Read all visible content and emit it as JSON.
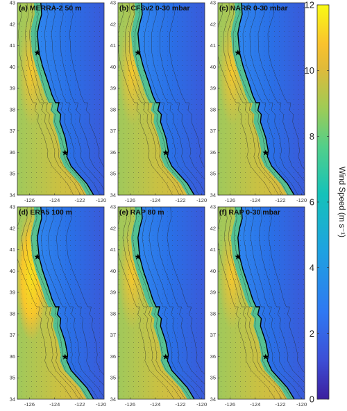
{
  "colorbar": {
    "label": "Wind Speed (m s⁻¹)",
    "ticks": [
      "0",
      "2",
      "4",
      "6",
      "8",
      "10",
      "12"
    ],
    "range": [
      0,
      12
    ],
    "colors": [
      "#3b1f9e",
      "#3d4fd6",
      "#2f78f2",
      "#1ea3e0",
      "#15c2b9",
      "#52cf8a",
      "#a0cb55",
      "#e0ba3a",
      "#f9c22e",
      "#f5e31f",
      "#f9fb14"
    ]
  },
  "x_tick_labels": [
    "-126",
    "-124",
    "-122",
    "-120"
  ],
  "y_tick_labels": [
    "34",
    "35",
    "36",
    "37",
    "38",
    "39",
    "40",
    "41",
    "42",
    "43"
  ],
  "panels": [
    {
      "label": "(a)",
      "title": "MERRA-2 50 m"
    },
    {
      "label": "(b)",
      "title": "CFSv2 0-30 mbar"
    },
    {
      "label": "(c)",
      "title": "NARR 0-30 mbar"
    },
    {
      "label": "(d)",
      "title": "ERA5 100 m"
    },
    {
      "label": "(e)",
      "title": "RAP 80 m"
    },
    {
      "label": "(f)",
      "title": "RAP 0-30 mbar"
    }
  ]
}
